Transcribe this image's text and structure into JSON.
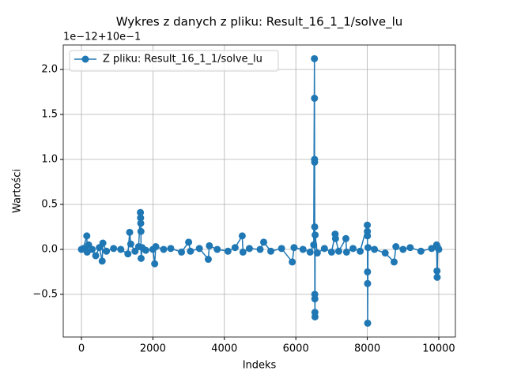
{
  "chart_data": {
    "type": "line",
    "title": "Wykres z danych z pliku: Result_16_1_1/solve_lu",
    "x_label": "Indeks",
    "y_label": "Wartości",
    "y_offset_label": "1e−12+10e−1",
    "x": [
      0,
      50,
      150,
      160,
      200,
      300,
      400,
      500,
      580,
      600,
      700,
      900,
      1100,
      1300,
      1350,
      1380,
      1500,
      1600,
      1650,
      1655,
      1660,
      1665,
      1670,
      1700,
      1800,
      2000,
      2050,
      2080,
      2300,
      2500,
      2800,
      3000,
      3050,
      3300,
      3550,
      3580,
      3800,
      4100,
      4300,
      4500,
      4520,
      4700,
      5000,
      5100,
      5300,
      5600,
      5900,
      5950,
      6200,
      6400,
      6500,
      6520,
      6522,
      6524,
      6526,
      6528,
      6530,
      6532,
      6534,
      6536,
      6540,
      6600,
      6800,
      7000,
      7100,
      7110,
      7200,
      7400,
      7420,
      7600,
      7800,
      8000,
      8002,
      8004,
      8006,
      8008,
      8010,
      8020,
      8200,
      8500,
      8750,
      8800,
      9000,
      9200,
      9500,
      9800,
      9940,
      9950,
      9955,
      9970,
      10000
    ],
    "series": [
      {
        "name": "Z pliku: Result_16_1_1/solve_lu",
        "color": "#1f77b4",
        "values": [
          0.0,
          0.01,
          0.15,
          -0.03,
          0.05,
          0.0,
          -0.07,
          0.02,
          -0.13,
          0.07,
          -0.02,
          0.01,
          0.0,
          -0.05,
          0.19,
          0.06,
          -0.02,
          0.03,
          0.41,
          0.35,
          0.29,
          0.2,
          -0.1,
          0.02,
          -0.01,
          0.0,
          -0.16,
          0.03,
          0.0,
          0.01,
          -0.03,
          0.08,
          -0.02,
          0.01,
          -0.11,
          0.04,
          0.0,
          -0.02,
          0.02,
          0.15,
          -0.03,
          0.01,
          0.0,
          0.08,
          -0.02,
          0.01,
          -0.14,
          0.02,
          0.0,
          -0.03,
          0.05,
          2.12,
          1.68,
          1.0,
          0.97,
          0.25,
          -0.5,
          -0.55,
          -0.7,
          -0.75,
          0.16,
          -0.04,
          0.01,
          -0.03,
          0.17,
          0.12,
          -0.02,
          0.12,
          -0.03,
          0.01,
          -0.02,
          0.27,
          0.2,
          0.15,
          -0.25,
          -0.38,
          -0.82,
          0.02,
          0.0,
          -0.04,
          -0.14,
          0.03,
          0.0,
          0.02,
          -0.02,
          0.01,
          0.05,
          -0.24,
          -0.31,
          0.02,
          0.0
        ]
      }
    ],
    "xlim": [
      -509,
      10465
    ],
    "ylim": [
      -0.974,
      2.272
    ],
    "xticks": [
      0,
      2000,
      4000,
      6000,
      8000,
      10000
    ],
    "yticks": [
      {
        "value": -0.5,
        "label": "−0.5"
      },
      {
        "value": 0,
        "label": "0.0"
      },
      {
        "value": 0.5,
        "label": "0.5"
      },
      {
        "value": 1,
        "label": "1.0"
      },
      {
        "value": 1.5,
        "label": "1.5"
      },
      {
        "value": 2,
        "label": "2.0"
      }
    ],
    "grid": true,
    "legend": "upper left"
  }
}
